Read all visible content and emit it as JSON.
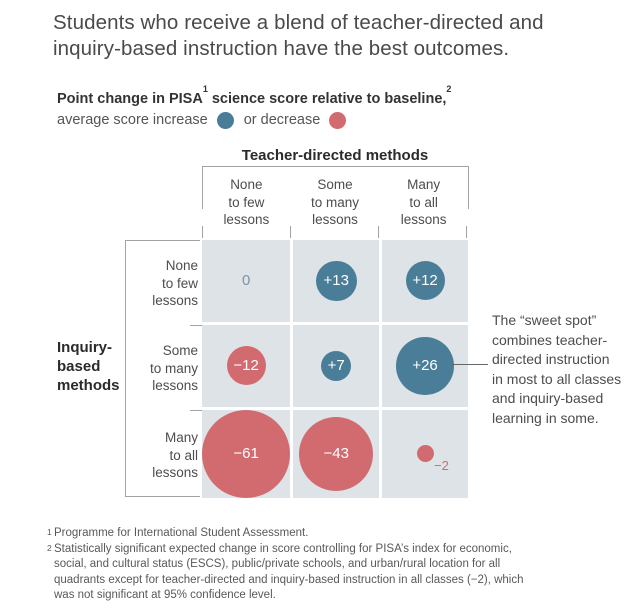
{
  "title": "Students who receive a blend of teacher-directed and\ninquiry-based instruction have the best outcomes.",
  "legend": {
    "title_part1": "Point change in PISA",
    "sup1": "1",
    "title_part2": " science score relative to baseline,",
    "sup2": "2",
    "increase_label": "average score increase",
    "decrease_label": "or decrease"
  },
  "matrix": {
    "x_axis_title": "Teacher-directed methods",
    "y_axis_title": "Inquiry-\nbased\nmethods",
    "col_labels": [
      "None\nto few\nlessons",
      "Some\nto many\nlessons",
      "Many\nto all\nlessons"
    ],
    "row_labels": [
      "None\nto few\nlessons",
      "Some\nto many\nlessons",
      "Many\nto all\nlessons"
    ]
  },
  "annotation": {
    "text": "The “sweet spot”\ncombines teacher-\ndirected instruction\nin most to all classes\nand inquiry-based\nlearning in some."
  },
  "footnotes": [
    {
      "marker": "1",
      "text": "Programme for International Student Assessment."
    },
    {
      "marker": "2",
      "text": "Statistically significant expected change in score controlling for PISA’s index for economic,\nsocial, and cultural status (ESCS), public/private schools, and urban/rural location for all\nquadrants except for teacher-directed and inquiry-based instruction in all classes (−2), which\nwas not significant at 95% confidence level."
    }
  ],
  "chart_data": {
    "type": "bubble",
    "title": "Point change in PISA science score relative to baseline",
    "x_dimension": "Teacher-directed methods",
    "y_dimension": "Inquiry-based methods",
    "categories_x": [
      "None to few lessons",
      "Some to many lessons",
      "Many to all lessons"
    ],
    "categories_y": [
      "None to few lessons",
      "Some to many lessons",
      "Many to all lessons"
    ],
    "values": [
      [
        0,
        13,
        12
      ],
      [
        -12,
        7,
        26
      ],
      [
        -61,
        -43,
        -2
      ]
    ],
    "increase_color": "#4a7e98",
    "decrease_color": "#d26b70",
    "cell_background": "#dee3e7",
    "size_rule": "bubble area proportional to absolute value",
    "legend_position": "top-left",
    "grid": true
  }
}
